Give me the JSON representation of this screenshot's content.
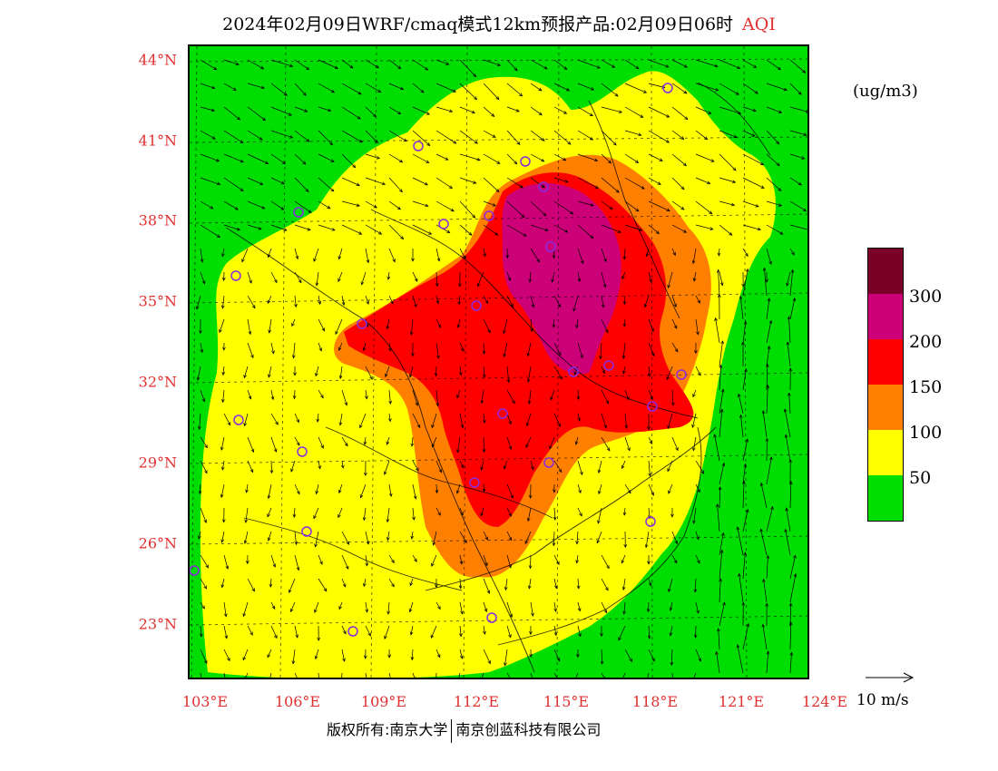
{
  "title": {
    "main": "2024年02月09日WRF/cmaq模式12km预报产品:02月09日06时",
    "variable": "AQI"
  },
  "units": "(ug/m3)",
  "colors": {
    "axis_label": "#e03030",
    "station_marker": "#8a2be2"
  },
  "legend": {
    "levels": [
      {
        "color": "#7a0028"
      },
      {
        "color": "#cc0077",
        "label": "300"
      },
      {
        "color": "#ff0000",
        "label": "200"
      },
      {
        "color": "#ff7f00",
        "label": "150"
      },
      {
        "color": "#ffff00",
        "label": "100"
      },
      {
        "color": "#00dd00",
        "label": "50"
      }
    ]
  },
  "axes": {
    "lat_labels": [
      "44°N",
      "41°N",
      "38°N",
      "35°N",
      "32°N",
      "29°N",
      "26°N",
      "23°N"
    ],
    "lon_labels": [
      "103°E",
      "106°E",
      "109°E",
      "112°E",
      "115°E",
      "118°E",
      "121°E",
      "124°E"
    ]
  },
  "wind_reference": "10 m/s",
  "footer": {
    "left": "版权所有:南京大学",
    "right": "南京创蓝科技有限公司"
  }
}
